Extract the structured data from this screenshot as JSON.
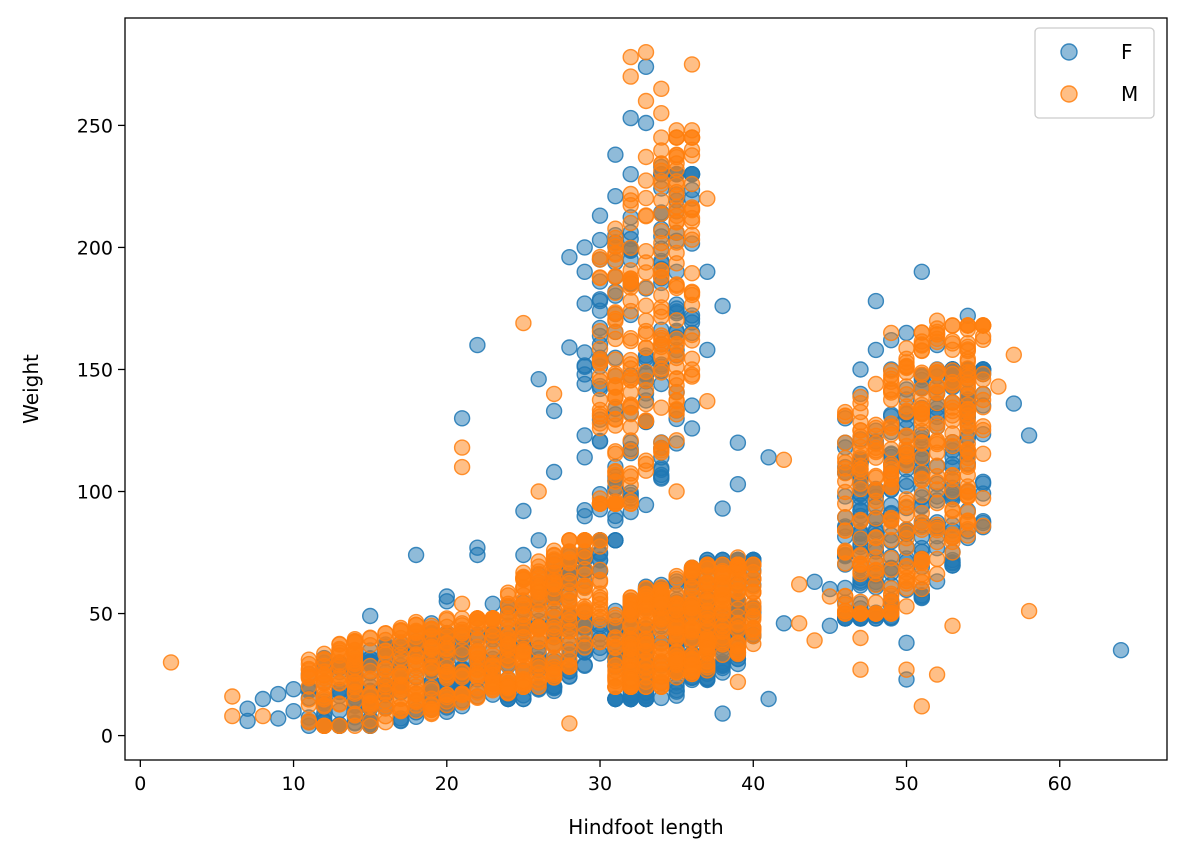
{
  "chart_data": {
    "type": "scatter",
    "title": "",
    "xlabel": "Hindfoot length",
    "ylabel": "Weight",
    "xlim": [
      -1,
      67
    ],
    "ylim": [
      -10,
      294
    ],
    "xticks": [
      0,
      10,
      20,
      30,
      40,
      50,
      60
    ],
    "yticks": [
      0,
      50,
      100,
      150,
      200,
      250
    ],
    "grid": false,
    "legend_position": "top-right",
    "alpha": 0.5,
    "series": [
      {
        "name": "F",
        "color": "#1f77b4",
        "points": [
          [
            7,
            6
          ],
          [
            7,
            11
          ],
          [
            8,
            15
          ],
          [
            9,
            17
          ],
          [
            9,
            7
          ],
          [
            10,
            19
          ],
          [
            10,
            10
          ],
          [
            12,
            13
          ],
          [
            13,
            26
          ],
          [
            14,
            22
          ],
          [
            15,
            49
          ],
          [
            15,
            30
          ],
          [
            16,
            35
          ],
          [
            16,
            28
          ],
          [
            17,
            36
          ],
          [
            18,
            74
          ],
          [
            18,
            42
          ],
          [
            19,
            46
          ],
          [
            20,
            57
          ],
          [
            20,
            55
          ],
          [
            21,
            130
          ],
          [
            22,
            160
          ],
          [
            22,
            77
          ],
          [
            22,
            74
          ],
          [
            23,
            54
          ],
          [
            24,
            53
          ],
          [
            25,
            92
          ],
          [
            25,
            74
          ],
          [
            26,
            146
          ],
          [
            26,
            80
          ],
          [
            27,
            133
          ],
          [
            27,
            108
          ],
          [
            28,
            196
          ],
          [
            28,
            159
          ],
          [
            29,
            200
          ],
          [
            29,
            190
          ],
          [
            29,
            177
          ],
          [
            29,
            157
          ],
          [
            29,
            148
          ],
          [
            29,
            123
          ],
          [
            29,
            114
          ],
          [
            30,
            213
          ],
          [
            30,
            203
          ],
          [
            30,
            186
          ],
          [
            30,
            178
          ],
          [
            31,
            238
          ],
          [
            31,
            221
          ],
          [
            31,
            205
          ],
          [
            32,
            253
          ],
          [
            32,
            230
          ],
          [
            33,
            274
          ],
          [
            33,
            251
          ],
          [
            34,
            233
          ],
          [
            35,
            206
          ],
          [
            35,
            190
          ],
          [
            35,
            175
          ],
          [
            36,
            220
          ],
          [
            36,
            165
          ],
          [
            37,
            190
          ],
          [
            37,
            158
          ],
          [
            38,
            176
          ],
          [
            38,
            93
          ],
          [
            38,
            9
          ],
          [
            39,
            120
          ],
          [
            39,
            103
          ],
          [
            41,
            114
          ],
          [
            41,
            15
          ],
          [
            42,
            46
          ],
          [
            44,
            63
          ],
          [
            45,
            60
          ],
          [
            45,
            45
          ],
          [
            46,
            130
          ],
          [
            46,
            120
          ],
          [
            46,
            110
          ],
          [
            46,
            98
          ],
          [
            47,
            150
          ],
          [
            47,
            140
          ],
          [
            48,
            178
          ],
          [
            48,
            158
          ],
          [
            49,
            162
          ],
          [
            49,
            150
          ],
          [
            50,
            165
          ],
          [
            50,
            38
          ],
          [
            50,
            23
          ],
          [
            51,
            190
          ],
          [
            52,
            160
          ],
          [
            52,
            85
          ],
          [
            53,
            150
          ],
          [
            54,
            172
          ],
          [
            55,
            104
          ],
          [
            55,
            140
          ],
          [
            57,
            136
          ],
          [
            58,
            123
          ],
          [
            64,
            35
          ]
        ],
        "clusters": [
          {
            "x": [
              11,
              24
            ],
            "y": [
              4,
              42
            ],
            "n": 240
          },
          {
            "x": [
              24,
              30
            ],
            "y": [
              15,
              75
            ],
            "n": 150
          },
          {
            "x": [
              31,
              40
            ],
            "y": [
              15,
              72
            ],
            "n": 300
          },
          {
            "x": [
              29,
              36
            ],
            "y": [
              80,
              230
            ],
            "n": 140
          },
          {
            "x": [
              46,
              55
            ],
            "y": [
              48,
              150
            ],
            "n": 260
          }
        ]
      },
      {
        "name": "M",
        "color": "#ff7f0e",
        "points": [
          [
            2,
            30
          ],
          [
            6,
            16
          ],
          [
            6,
            8
          ],
          [
            8,
            8
          ],
          [
            12,
            22
          ],
          [
            19,
            45
          ],
          [
            21,
            118
          ],
          [
            21,
            110
          ],
          [
            21,
            54
          ],
          [
            25,
            169
          ],
          [
            26,
            100
          ],
          [
            27,
            140
          ],
          [
            28,
            75
          ],
          [
            28,
            5
          ],
          [
            30,
            195
          ],
          [
            32,
            278
          ],
          [
            32,
            270
          ],
          [
            33,
            280
          ],
          [
            33,
            260
          ],
          [
            34,
            265
          ],
          [
            34,
            255
          ],
          [
            35,
            248
          ],
          [
            35,
            238
          ],
          [
            36,
            275
          ],
          [
            36,
            248
          ],
          [
            36,
            240
          ],
          [
            36,
            226
          ],
          [
            36,
            212
          ],
          [
            37,
            220
          ],
          [
            36,
            150
          ],
          [
            37,
            137
          ],
          [
            35,
            121
          ],
          [
            35,
            100
          ],
          [
            39,
            73
          ],
          [
            39,
            22
          ],
          [
            42,
            113
          ],
          [
            43,
            62
          ],
          [
            43,
            46
          ],
          [
            44,
            39
          ],
          [
            45,
            57
          ],
          [
            46,
            95
          ],
          [
            46,
            84
          ],
          [
            46,
            120
          ],
          [
            47,
            70
          ],
          [
            47,
            40
          ],
          [
            47,
            27
          ],
          [
            48,
            100
          ],
          [
            49,
            165
          ],
          [
            50,
            27
          ],
          [
            51,
            60
          ],
          [
            51,
            12
          ],
          [
            52,
            170
          ],
          [
            52,
            25
          ],
          [
            53,
            45
          ],
          [
            55,
            168
          ],
          [
            56,
            143
          ],
          [
            57,
            156
          ],
          [
            58,
            51
          ]
        ],
        "clusters": [
          {
            "x": [
              11,
              24
            ],
            "y": [
              4,
              48
            ],
            "n": 320
          },
          {
            "x": [
              24,
              30
            ],
            "y": [
              20,
              80
            ],
            "n": 200
          },
          {
            "x": [
              31,
              40
            ],
            "y": [
              20,
              70
            ],
            "n": 380
          },
          {
            "x": [
              30,
              36
            ],
            "y": [
              95,
              245
            ],
            "n": 220
          },
          {
            "x": [
              46,
              55
            ],
            "y": [
              50,
              168
            ],
            "n": 330
          }
        ]
      }
    ]
  }
}
